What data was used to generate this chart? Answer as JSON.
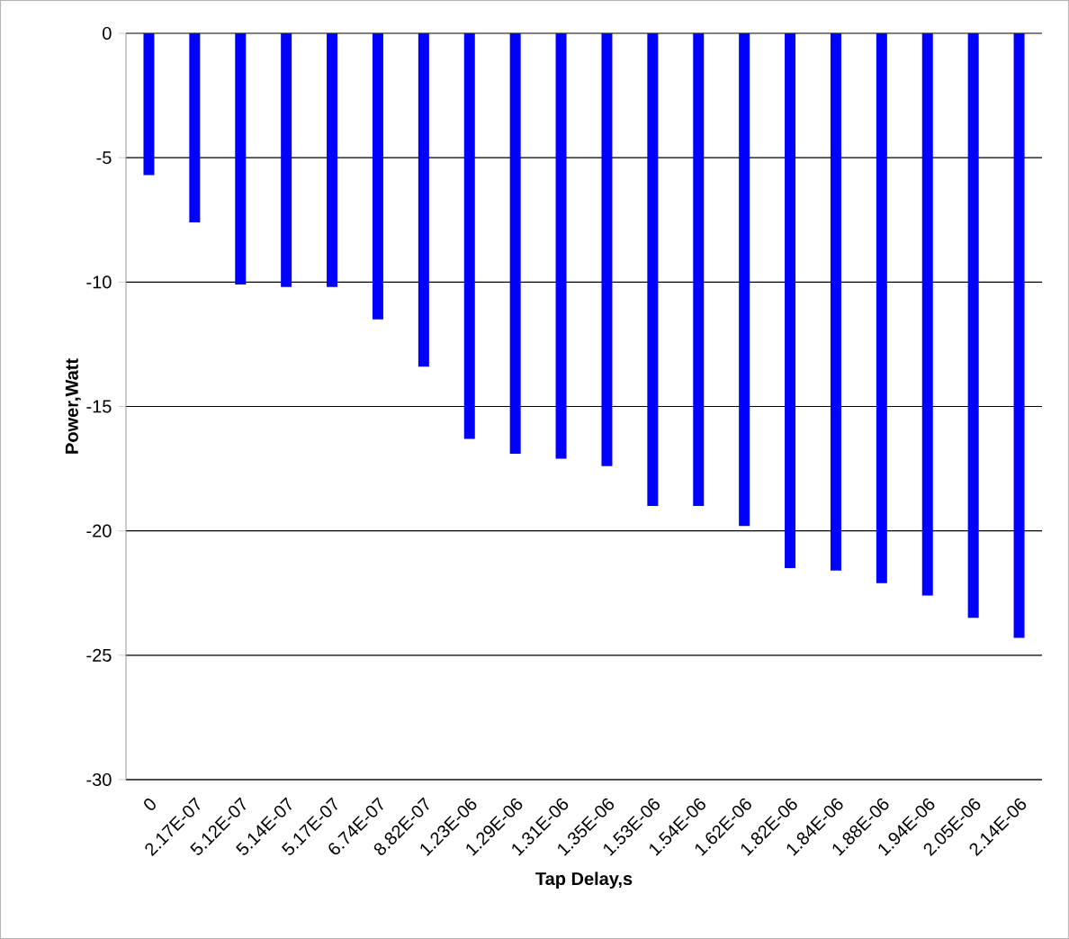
{
  "chart_data": {
    "type": "bar",
    "xlabel": "Tap Delay,s",
    "ylabel": "Power,Watt",
    "categories": [
      "0",
      "2.17E-07",
      "5.12E-07",
      "5.14E-07",
      "5.17E-07",
      "6.74E-07",
      "8.82E-07",
      "1.23E-06",
      "1.29E-06",
      "1.31E-06",
      "1.35E-06",
      "1.53E-06",
      "1.54E-06",
      "1.62E-06",
      "1.82E-06",
      "1.84E-06",
      "1.88E-06",
      "1.94E-06",
      "2.05E-06",
      "2.14E-06"
    ],
    "values": [
      -5.7,
      -7.6,
      -10.1,
      -10.2,
      -10.2,
      -11.5,
      -13.4,
      -16.3,
      -16.9,
      -17.1,
      -17.4,
      -19.0,
      -19.0,
      -19.8,
      -21.5,
      -21.6,
      -22.1,
      -22.6,
      -23.5,
      -24.3
    ],
    "color": "#0000ff",
    "ylim": [
      -30,
      0
    ],
    "yticks": [
      -30,
      -25,
      -20,
      -15,
      -10,
      -5,
      0
    ],
    "grid": "y"
  }
}
